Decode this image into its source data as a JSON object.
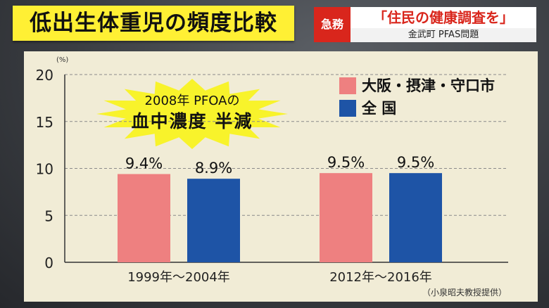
{
  "header": {
    "title": "低出生体重児の頻度比較",
    "urgent_tag": "急務",
    "headline": "「住民の健康調査を」",
    "subheadline": "金武町 PFAS問題"
  },
  "annotation": {
    "line1": "2008年 PFOAの",
    "line2": "血中濃度 半減"
  },
  "footer": {
    "source": "（小泉昭夫教授提供）"
  },
  "colors": {
    "osaka": "#ee8080",
    "national": "#1e54a6",
    "title_bg": "#fff034",
    "urgent": "#d9261c"
  },
  "chart_data": {
    "type": "bar",
    "categories": [
      "1999年～2004年",
      "2012年～2016年"
    ],
    "series": [
      {
        "name": "大阪・摂津・守口市",
        "values": [
          9.4,
          9.5
        ],
        "labels": [
          "9.4%",
          "9.5%"
        ],
        "color": "#ee8080"
      },
      {
        "name": "全 国",
        "values": [
          8.9,
          9.5
        ],
        "labels": [
          "8.9%",
          "9.5%"
        ],
        "color": "#1e54a6"
      }
    ],
    "yunit": "(%)",
    "ylim": [
      0,
      20
    ],
    "yticks": [
      "0",
      "5",
      "10",
      "15",
      "20"
    ],
    "grid": true,
    "legend": "top-right"
  }
}
